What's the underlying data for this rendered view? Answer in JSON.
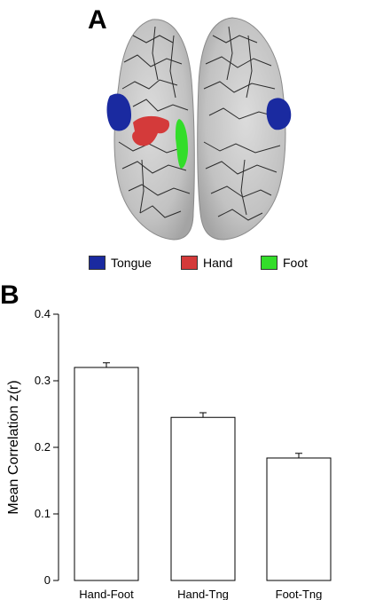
{
  "panel_a": {
    "label": "A",
    "legend": [
      {
        "name": "tongue",
        "label": "Tongue",
        "color": "#1a2aa0"
      },
      {
        "name": "hand",
        "label": "Hand",
        "color": "#d43a3a"
      },
      {
        "name": "foot",
        "label": "Foot",
        "color": "#33dd2a"
      }
    ]
  },
  "panel_b": {
    "label": "B"
  },
  "chart_data": {
    "type": "bar",
    "title": "",
    "categories": [
      "Hand-Foot",
      "Hand-Tng",
      "Foot-Tng"
    ],
    "values": [
      0.32,
      0.245,
      0.184
    ],
    "errors": [
      0.007,
      0.007,
      0.007
    ],
    "ylabel": "Mean Correlation z(r)",
    "xlabel": "",
    "ylim": [
      0,
      0.4
    ],
    "yticks": [
      "0",
      "0.1",
      "0.2",
      "0.3",
      "0.4"
    ],
    "ytick_values": [
      0,
      0.1,
      0.2,
      0.3,
      0.4
    ],
    "bar_color": "#ffffff",
    "grid": false
  }
}
